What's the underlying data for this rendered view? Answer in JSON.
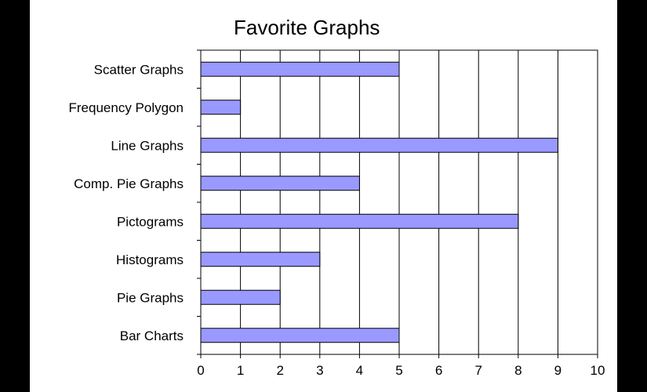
{
  "chart_data": {
    "type": "bar",
    "orientation": "horizontal",
    "title": "Favorite Graphs",
    "xlabel": "",
    "ylabel": "",
    "categories": [
      "Scatter Graphs",
      "Frequency Polygon",
      "Line Graphs",
      "Comp. Pie Graphs",
      "Pictograms",
      "Histograms",
      "Pie Graphs",
      "Bar Charts"
    ],
    "values": [
      5,
      1,
      9,
      4,
      8,
      3,
      2,
      5
    ],
    "xlim": [
      0,
      10
    ],
    "xticks": [
      "0",
      "1",
      "2",
      "3",
      "4",
      "5",
      "6",
      "7",
      "8",
      "9",
      "10"
    ],
    "grid": "vertical",
    "legend": "none",
    "bar_color": "#9999ff",
    "bar_edge_color": "#000000"
  }
}
